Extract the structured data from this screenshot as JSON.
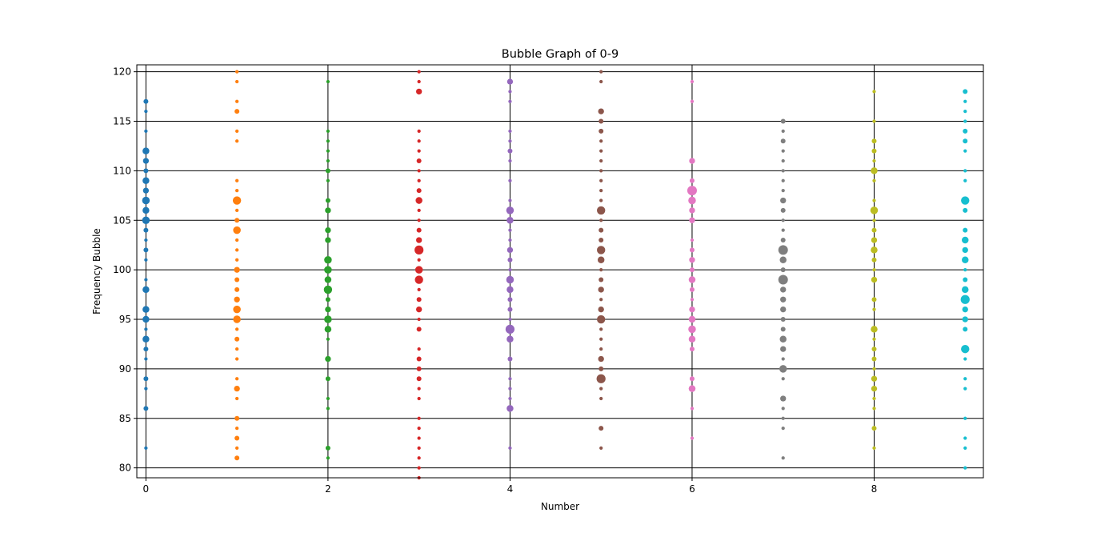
{
  "chart_data": {
    "type": "scatter",
    "title": "Bubble Graph of 0-9",
    "xlabel": "Number",
    "ylabel": "Frequency Bubble",
    "xlim": [
      -0.1,
      9.2
    ],
    "ylim": [
      79,
      120.7
    ],
    "xticks": [
      "0",
      "2",
      "4",
      "6",
      "8"
    ],
    "yticks": [
      "80",
      "85",
      "90",
      "95",
      "100",
      "105",
      "110",
      "115",
      "120"
    ],
    "grid": true,
    "legend": "none",
    "size_encoding": "bubble area = frequency of y value within that number",
    "series": [
      {
        "x": 0,
        "color": "#1f77b4",
        "points": [
          [
            82,
            1
          ],
          [
            86,
            2
          ],
          [
            88,
            1
          ],
          [
            89,
            2
          ],
          [
            91,
            1
          ],
          [
            92,
            2
          ],
          [
            93,
            4
          ],
          [
            94,
            1
          ],
          [
            95,
            4
          ],
          [
            96,
            4
          ],
          [
            98,
            4
          ],
          [
            99,
            1
          ],
          [
            101,
            1
          ],
          [
            102,
            2
          ],
          [
            103,
            1
          ],
          [
            104,
            2
          ],
          [
            105,
            5
          ],
          [
            106,
            4
          ],
          [
            107,
            5
          ],
          [
            108,
            3
          ],
          [
            109,
            4
          ],
          [
            110,
            2
          ],
          [
            111,
            3
          ],
          [
            112,
            4
          ],
          [
            114,
            1
          ],
          [
            116,
            1
          ],
          [
            117,
            2
          ]
        ]
      },
      {
        "x": 1,
        "color": "#ff7f0e",
        "points": [
          [
            81,
            2
          ],
          [
            82,
            1
          ],
          [
            83,
            2
          ],
          [
            84,
            1
          ],
          [
            85,
            2
          ],
          [
            87,
            1
          ],
          [
            88,
            3
          ],
          [
            89,
            1
          ],
          [
            91,
            1
          ],
          [
            92,
            1
          ],
          [
            93,
            2
          ],
          [
            94,
            1
          ],
          [
            95,
            5
          ],
          [
            96,
            5
          ],
          [
            97,
            3
          ],
          [
            98,
            2
          ],
          [
            99,
            2
          ],
          [
            100,
            3
          ],
          [
            101,
            1
          ],
          [
            102,
            1
          ],
          [
            103,
            1
          ],
          [
            104,
            5
          ],
          [
            105,
            2
          ],
          [
            106,
            1
          ],
          [
            107,
            6
          ],
          [
            108,
            1
          ],
          [
            109,
            1
          ],
          [
            113,
            1
          ],
          [
            114,
            1
          ],
          [
            116,
            2
          ],
          [
            117,
            1
          ],
          [
            119,
            1
          ],
          [
            120,
            1
          ]
        ]
      },
      {
        "x": 2,
        "color": "#2ca02c",
        "points": [
          [
            81,
            1
          ],
          [
            82,
            2
          ],
          [
            86,
            1
          ],
          [
            87,
            1
          ],
          [
            89,
            2
          ],
          [
            91,
            3
          ],
          [
            93,
            1
          ],
          [
            94,
            4
          ],
          [
            95,
            5
          ],
          [
            96,
            3
          ],
          [
            97,
            2
          ],
          [
            98,
            6
          ],
          [
            99,
            4
          ],
          [
            100,
            5
          ],
          [
            101,
            5
          ],
          [
            103,
            3
          ],
          [
            104,
            3
          ],
          [
            106,
            3
          ],
          [
            107,
            2
          ],
          [
            109,
            1
          ],
          [
            110,
            2
          ],
          [
            111,
            1
          ],
          [
            112,
            1
          ],
          [
            113,
            1
          ],
          [
            114,
            1
          ],
          [
            119,
            1
          ]
        ]
      },
      {
        "x": 3,
        "color": "#d62728",
        "points": [
          [
            79,
            1
          ],
          [
            80,
            1
          ],
          [
            81,
            1
          ],
          [
            82,
            1
          ],
          [
            83,
            1
          ],
          [
            84,
            1
          ],
          [
            85,
            1
          ],
          [
            87,
            1
          ],
          [
            88,
            1
          ],
          [
            89,
            2
          ],
          [
            90,
            2
          ],
          [
            91,
            2
          ],
          [
            92,
            1
          ],
          [
            94,
            2
          ],
          [
            95,
            1
          ],
          [
            96,
            3
          ],
          [
            97,
            2
          ],
          [
            98,
            1
          ],
          [
            99,
            6
          ],
          [
            100,
            5
          ],
          [
            101,
            1
          ],
          [
            102,
            7
          ],
          [
            103,
            3
          ],
          [
            104,
            2
          ],
          [
            105,
            1
          ],
          [
            106,
            1
          ],
          [
            107,
            4
          ],
          [
            108,
            2
          ],
          [
            109,
            1
          ],
          [
            110,
            1
          ],
          [
            111,
            2
          ],
          [
            112,
            1
          ],
          [
            113,
            1
          ],
          [
            114,
            1
          ],
          [
            118,
            3
          ],
          [
            119,
            1
          ],
          [
            120,
            1
          ]
        ]
      },
      {
        "x": 4,
        "color": "#9467bd",
        "points": [
          [
            82,
            1
          ],
          [
            86,
            4
          ],
          [
            87,
            1
          ],
          [
            88,
            1
          ],
          [
            89,
            1
          ],
          [
            91,
            2
          ],
          [
            93,
            4
          ],
          [
            94,
            7
          ],
          [
            95,
            1
          ],
          [
            96,
            2
          ],
          [
            97,
            2
          ],
          [
            98,
            4
          ],
          [
            99,
            5
          ],
          [
            100,
            1
          ],
          [
            101,
            2
          ],
          [
            102,
            3
          ],
          [
            103,
            1
          ],
          [
            104,
            1
          ],
          [
            105,
            4
          ],
          [
            106,
            5
          ],
          [
            107,
            1
          ],
          [
            109,
            1
          ],
          [
            111,
            1
          ],
          [
            112,
            2
          ],
          [
            113,
            1
          ],
          [
            114,
            1
          ],
          [
            117,
            1
          ],
          [
            118,
            1
          ],
          [
            119,
            3
          ]
        ]
      },
      {
        "x": 5,
        "color": "#8c564b",
        "points": [
          [
            82,
            1
          ],
          [
            84,
            2
          ],
          [
            87,
            1
          ],
          [
            88,
            1
          ],
          [
            89,
            7
          ],
          [
            90,
            2
          ],
          [
            91,
            3
          ],
          [
            92,
            1
          ],
          [
            93,
            1
          ],
          [
            94,
            1
          ],
          [
            95,
            6
          ],
          [
            96,
            3
          ],
          [
            97,
            1
          ],
          [
            98,
            3
          ],
          [
            99,
            2
          ],
          [
            100,
            1
          ],
          [
            101,
            4
          ],
          [
            102,
            6
          ],
          [
            103,
            2
          ],
          [
            104,
            2
          ],
          [
            105,
            1
          ],
          [
            106,
            6
          ],
          [
            107,
            1
          ],
          [
            108,
            1
          ],
          [
            109,
            1
          ],
          [
            110,
            1
          ],
          [
            111,
            1
          ],
          [
            112,
            1
          ],
          [
            113,
            1
          ],
          [
            114,
            2
          ],
          [
            115,
            2
          ],
          [
            116,
            3
          ],
          [
            119,
            1
          ],
          [
            120,
            1
          ]
        ]
      },
      {
        "x": 6,
        "color": "#e377c2",
        "points": [
          [
            83,
            1
          ],
          [
            86,
            1
          ],
          [
            88,
            4
          ],
          [
            89,
            2
          ],
          [
            92,
            2
          ],
          [
            93,
            4
          ],
          [
            94,
            5
          ],
          [
            95,
            4
          ],
          [
            96,
            3
          ],
          [
            97,
            1
          ],
          [
            98,
            2
          ],
          [
            99,
            4
          ],
          [
            100,
            2
          ],
          [
            101,
            3
          ],
          [
            102,
            2
          ],
          [
            103,
            1
          ],
          [
            105,
            3
          ],
          [
            106,
            3
          ],
          [
            107,
            5
          ],
          [
            108,
            8
          ],
          [
            109,
            2
          ],
          [
            111,
            3
          ],
          [
            117,
            1
          ],
          [
            119,
            1
          ]
        ]
      },
      {
        "x": 7,
        "color": "#7f7f7f",
        "points": [
          [
            81,
            1
          ],
          [
            84,
            1
          ],
          [
            85,
            1
          ],
          [
            86,
            1
          ],
          [
            87,
            3
          ],
          [
            89,
            1
          ],
          [
            90,
            5
          ],
          [
            91,
            1
          ],
          [
            92,
            3
          ],
          [
            93,
            4
          ],
          [
            94,
            2
          ],
          [
            95,
            2
          ],
          [
            96,
            3
          ],
          [
            97,
            3
          ],
          [
            98,
            3
          ],
          [
            99,
            8
          ],
          [
            100,
            2
          ],
          [
            101,
            4
          ],
          [
            102,
            8
          ],
          [
            103,
            2
          ],
          [
            104,
            1
          ],
          [
            105,
            1
          ],
          [
            106,
            2
          ],
          [
            107,
            3
          ],
          [
            108,
            1
          ],
          [
            109,
            1
          ],
          [
            110,
            1
          ],
          [
            111,
            1
          ],
          [
            112,
            1
          ],
          [
            113,
            2
          ],
          [
            114,
            1
          ],
          [
            115,
            2
          ]
        ]
      },
      {
        "x": 8,
        "color": "#bcbd22",
        "points": [
          [
            82,
            1
          ],
          [
            84,
            2
          ],
          [
            86,
            1
          ],
          [
            87,
            1
          ],
          [
            88,
            3
          ],
          [
            89,
            3
          ],
          [
            90,
            1
          ],
          [
            91,
            2
          ],
          [
            92,
            2
          ],
          [
            93,
            1
          ],
          [
            94,
            4
          ],
          [
            96,
            1
          ],
          [
            97,
            2
          ],
          [
            99,
            3
          ],
          [
            100,
            1
          ],
          [
            101,
            2
          ],
          [
            102,
            4
          ],
          [
            103,
            3
          ],
          [
            104,
            2
          ],
          [
            105,
            1
          ],
          [
            106,
            5
          ],
          [
            107,
            1
          ],
          [
            109,
            1
          ],
          [
            110,
            4
          ],
          [
            111,
            1
          ],
          [
            112,
            2
          ],
          [
            113,
            2
          ],
          [
            115,
            1
          ],
          [
            118,
            1
          ]
        ]
      },
      {
        "x": 9,
        "color": "#17becf",
        "points": [
          [
            80,
            1
          ],
          [
            82,
            1
          ],
          [
            83,
            1
          ],
          [
            85,
            1
          ],
          [
            88,
            1
          ],
          [
            89,
            1
          ],
          [
            91,
            1
          ],
          [
            92,
            6
          ],
          [
            94,
            2
          ],
          [
            95,
            3
          ],
          [
            96,
            3
          ],
          [
            97,
            7
          ],
          [
            98,
            4
          ],
          [
            99,
            2
          ],
          [
            100,
            1
          ],
          [
            101,
            4
          ],
          [
            102,
            3
          ],
          [
            103,
            4
          ],
          [
            104,
            2
          ],
          [
            106,
            2
          ],
          [
            107,
            6
          ],
          [
            109,
            1
          ],
          [
            110,
            1
          ],
          [
            112,
            1
          ],
          [
            113,
            2
          ],
          [
            114,
            2
          ],
          [
            115,
            1
          ],
          [
            116,
            1
          ],
          [
            117,
            1
          ],
          [
            118,
            2
          ]
        ]
      }
    ]
  }
}
